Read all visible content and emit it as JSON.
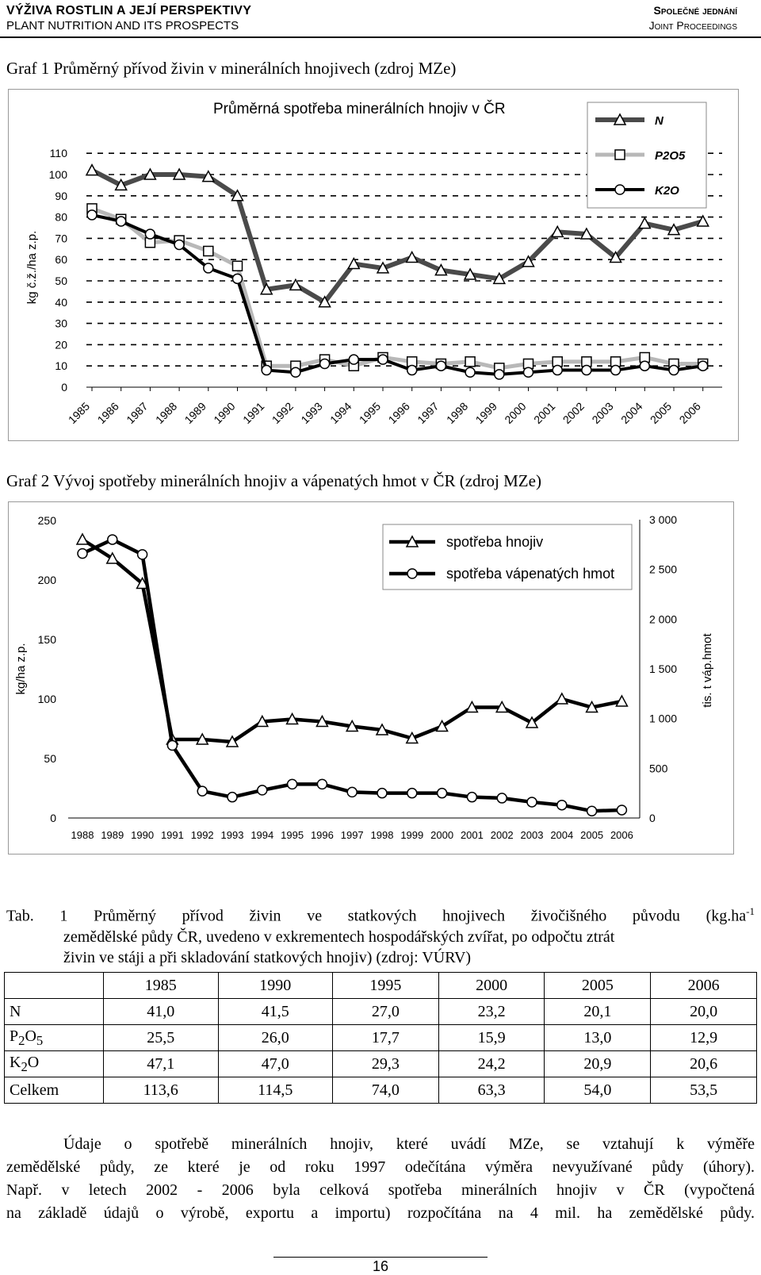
{
  "header": {
    "left_line1": "VÝŽIVA ROSTLIN A JEJÍ PERSPEKTIVY",
    "left_line2": "PLANT NUTRITION AND ITS PROSPECTS",
    "right_line1": "Společné jednání",
    "right_line2": "Joint Proceedings"
  },
  "graf1": {
    "caption": "Graf 1 Průměrný přívod živin v minerálních hnojivech (zdroj MZe)"
  },
  "graf2": {
    "caption": "Graf 2 Vývoj spotřeby minerálních hnojiv a vápenatých hmot v ČR (zdroj MZe)"
  },
  "chart_data": [
    {
      "type": "line",
      "title": "Průměrná spotřeba minerálních hnojiv v ČR",
      "ylabel": "kg č.ž./ha z.p.",
      "ylim": [
        0,
        110
      ],
      "yticks": [
        0,
        10,
        20,
        30,
        40,
        50,
        60,
        70,
        80,
        90,
        100,
        110
      ],
      "grid": "dashed horizontal",
      "legend": "top-right",
      "categories": [
        "1985",
        "1986",
        "1987",
        "1988",
        "1989",
        "1990",
        "1991",
        "1992",
        "1993",
        "1994",
        "1995",
        "1996",
        "1997",
        "1998",
        "1999",
        "2000",
        "2001",
        "2002",
        "2003",
        "2004",
        "2005",
        "2006"
      ],
      "series": [
        {
          "name": "N",
          "marker": "triangle",
          "color": "#4a4a4a",
          "values": [
            102,
            95,
            100,
            100,
            99,
            90,
            46,
            48,
            40,
            58,
            56,
            61,
            55,
            53,
            51,
            59,
            73,
            72,
            61,
            77,
            74,
            78
          ]
        },
        {
          "name": "P2O5",
          "marker": "square",
          "color": "#b8b8b8",
          "values": [
            84,
            79,
            68,
            69,
            64,
            57,
            10,
            10,
            13,
            10,
            14,
            12,
            11,
            12,
            9,
            11,
            12,
            12,
            12,
            14,
            11,
            11
          ]
        },
        {
          "name": "K2O",
          "marker": "circle",
          "color": "#000000",
          "values": [
            81,
            78,
            72,
            67,
            56,
            51,
            8,
            7,
            11,
            13,
            13,
            8,
            10,
            7,
            6,
            7,
            8,
            8,
            8,
            10,
            8,
            10
          ]
        }
      ]
    },
    {
      "type": "line",
      "ylabel_left": "kg/ha z.p.",
      "ylabel_right": "tis. t váp.hmot",
      "ylim_left": [
        0,
        250
      ],
      "ylim_right": [
        0,
        3000
      ],
      "yticks_left": [
        0,
        50,
        100,
        150,
        200,
        250
      ],
      "yticks_right": [
        "0",
        "500",
        "1 000",
        "1 500",
        "2 000",
        "2 500",
        "3 000"
      ],
      "legend": "top-right",
      "categories": [
        "1988",
        "1989",
        "1990",
        "1991",
        "1992",
        "1993",
        "1994",
        "1995",
        "1996",
        "1997",
        "1998",
        "1999",
        "2000",
        "2001",
        "2002",
        "2003",
        "2004",
        "2005",
        "2006"
      ],
      "series": [
        {
          "name": "spotřeba hnojiv",
          "marker": "triangle",
          "axis": "left",
          "values": [
            234,
            218,
            197,
            66,
            66,
            64,
            81,
            83,
            81,
            77,
            74,
            67,
            77,
            93,
            93,
            80,
            100,
            93,
            98
          ]
        },
        {
          "name": "spotřeba vápenatých hmot",
          "marker": "circle",
          "axis": "right",
          "values": [
            2660,
            2800,
            2650,
            730,
            270,
            210,
            280,
            340,
            340,
            260,
            250,
            250,
            250,
            210,
            200,
            160,
            130,
            70,
            80
          ]
        }
      ]
    }
  ],
  "table": {
    "caption_line1": "Tab. 1 Průměrný přívod živin ve statkových hnojivech živočišného původu (kg.ha",
    "caption_sup": "-1",
    "caption_line2": "zemědělské půdy ČR, uvedeno v exkrementech hospodářských zvířat, po odpočtu ztrát",
    "caption_line3": "živin ve stáji a při skladování statkových hnojiv) (zdroj: VÚRV)",
    "years": [
      "1985",
      "1990",
      "1995",
      "2000",
      "2005",
      "2006"
    ],
    "rows": [
      {
        "label": "N",
        "values": [
          "41,0",
          "41,5",
          "27,0",
          "23,2",
          "20,1",
          "20,0"
        ]
      },
      {
        "label_base": "P",
        "label_sub1": "2",
        "label_mid": "O",
        "label_sub2": "5",
        "values": [
          "25,5",
          "26,0",
          "17,7",
          "15,9",
          "13,0",
          "12,9"
        ]
      },
      {
        "label_base": "K",
        "label_sub1": "2",
        "label_mid": "O",
        "values": [
          "47,1",
          "47,0",
          "29,3",
          "24,2",
          "20,9",
          "20,6"
        ]
      },
      {
        "label": "Celkem",
        "values": [
          "113,6",
          "114,5",
          "74,0",
          "63,3",
          "54,0",
          "53,5"
        ]
      }
    ]
  },
  "paragraph": {
    "line1": "Údaje o spotřebě minerálních hnojiv, které uvádí MZe, se vztahují k výměře",
    "line2": "zemědělské půdy, ze které je od roku 1997 odečítána výměra nevyužívané půdy (úhory).",
    "line3": "Např. v letech 2002 - 2006 byla celková spotřeba minerálních hnojiv v ČR (vypočtená",
    "line4": "na základě údajů o výrobě, exportu a importu) rozpočítána na 4 mil. ha zemědělské půdy."
  },
  "page_number": "16"
}
